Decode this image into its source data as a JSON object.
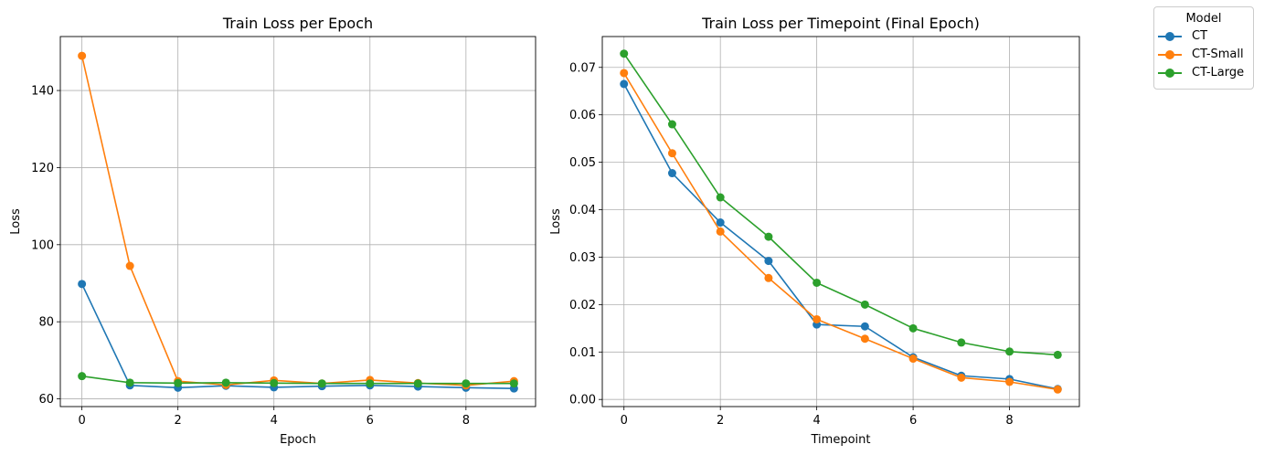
{
  "legend": {
    "title": "Model",
    "items": [
      {
        "label": "CT",
        "color": "#1f77b4"
      },
      {
        "label": "CT-Small",
        "color": "#ff7f0e"
      },
      {
        "label": "CT-Large",
        "color": "#2ca02c"
      }
    ]
  },
  "chart_data": [
    {
      "type": "line",
      "title": "Train Loss per Epoch",
      "xlabel": "Epoch",
      "ylabel": "Loss",
      "xlim": [
        -0.45,
        9.45
      ],
      "ylim": [
        58.0,
        154.0
      ],
      "xticks": [
        0,
        2,
        4,
        6,
        8
      ],
      "yticks": [
        60,
        80,
        100,
        120,
        140
      ],
      "grid": true,
      "x": [
        0,
        1,
        2,
        3,
        4,
        5,
        6,
        7,
        8,
        9
      ],
      "series": [
        {
          "name": "CT",
          "color": "#1f77b4",
          "values": [
            89.8,
            63.5,
            62.9,
            63.4,
            63.0,
            63.3,
            63.5,
            63.2,
            62.9,
            62.7
          ]
        },
        {
          "name": "CT-Small",
          "color": "#ff7f0e",
          "values": [
            149.0,
            94.5,
            64.6,
            63.6,
            64.8,
            64.0,
            64.9,
            64.1,
            63.5,
            64.6
          ]
        },
        {
          "name": "CT-Large",
          "color": "#2ca02c",
          "values": [
            65.9,
            64.2,
            64.1,
            64.2,
            64.1,
            64.0,
            64.0,
            64.0,
            64.0,
            64.0
          ]
        }
      ]
    },
    {
      "type": "line",
      "title": "Train Loss per Timepoint (Final Epoch)",
      "xlabel": "Timepoint",
      "ylabel": "Loss",
      "xlim": [
        -0.45,
        9.45
      ],
      "ylim": [
        -0.0015,
        0.0765
      ],
      "xticks": [
        0,
        2,
        4,
        6,
        8
      ],
      "yticks": [
        0.0,
        0.01,
        0.02,
        0.03,
        0.04,
        0.05,
        0.06,
        0.07
      ],
      "yticklabels": [
        "0.00",
        "0.01",
        "0.02",
        "0.03",
        "0.04",
        "0.05",
        "0.06",
        "0.07"
      ],
      "grid": true,
      "x": [
        0,
        1,
        2,
        3,
        4,
        5,
        6,
        7,
        8,
        9
      ],
      "series": [
        {
          "name": "CT",
          "color": "#1f77b4",
          "values": [
            0.0665,
            0.0477,
            0.0373,
            0.0292,
            0.0158,
            0.0154,
            0.0089,
            0.005,
            0.0043,
            0.0022
          ]
        },
        {
          "name": "CT-Small",
          "color": "#ff7f0e",
          "values": [
            0.0688,
            0.0519,
            0.0354,
            0.0256,
            0.0169,
            0.0128,
            0.0086,
            0.0046,
            0.0037,
            0.0021
          ]
        },
        {
          "name": "CT-Large",
          "color": "#2ca02c",
          "values": [
            0.0729,
            0.058,
            0.0426,
            0.0343,
            0.0246,
            0.02,
            0.015,
            0.012,
            0.0101,
            0.0094
          ]
        }
      ]
    }
  ]
}
